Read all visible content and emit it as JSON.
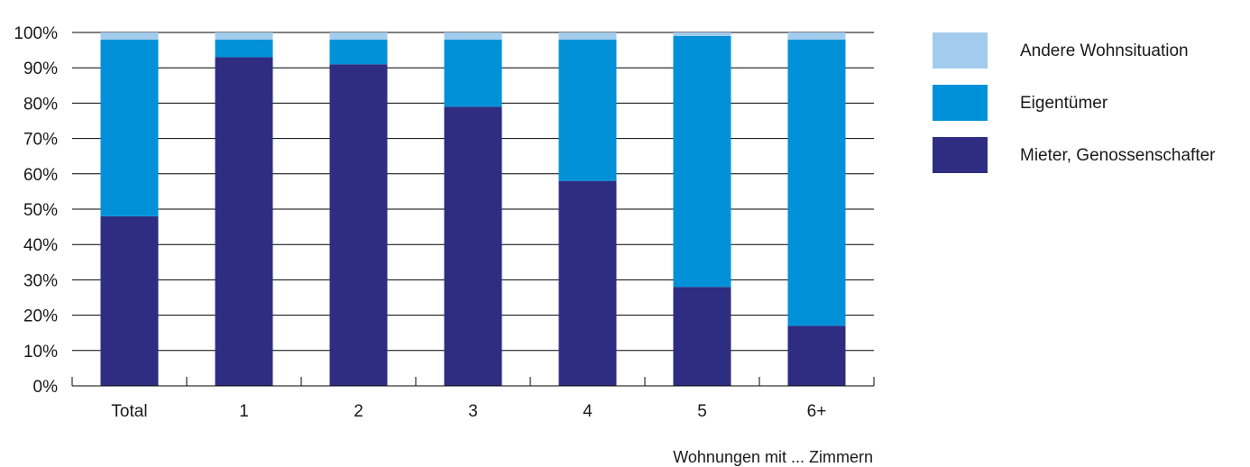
{
  "chart_data": {
    "type": "bar",
    "stacked": true,
    "categories": [
      "Total",
      "1",
      "2",
      "3",
      "4",
      "5",
      "6+"
    ],
    "series": [
      {
        "name": "Mieter, Genossenschafter",
        "color": "#2e2d82",
        "values": [
          48,
          93,
          91,
          79,
          58,
          28,
          17
        ]
      },
      {
        "name": "Eigentümer",
        "color": "#0091d9",
        "values": [
          50,
          5,
          7,
          19,
          40,
          71,
          81
        ]
      },
      {
        "name": "Andere Wohnsituation",
        "color": "#a3cbee",
        "values": [
          2,
          2,
          2,
          2,
          2,
          1,
          2
        ]
      }
    ],
    "ylim": [
      0,
      100
    ],
    "yticks": [
      "0%",
      "10%",
      "20%",
      "30%",
      "40%",
      "50%",
      "60%",
      "70%",
      "80%",
      "90%",
      "100%"
    ],
    "xlabel": "Wohnungen mit ... Zimmern",
    "ylabel": "",
    "grid": true,
    "legend_position": "right",
    "legend_order": [
      "Andere Wohnsituation",
      "Eigentümer",
      "Mieter, Genossenschafter"
    ]
  }
}
